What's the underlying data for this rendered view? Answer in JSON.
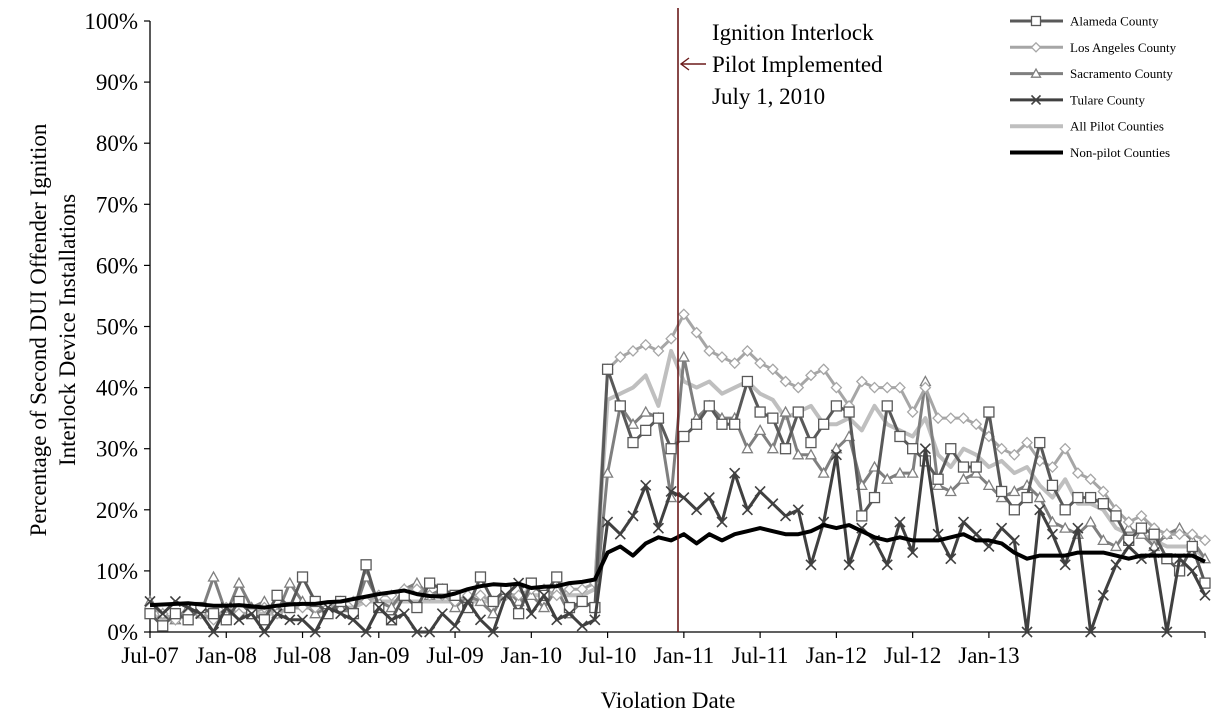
{
  "chart_data": {
    "type": "line",
    "title": "",
    "xlabel": "Violation Date",
    "ylabel_lines": [
      "Percentage of Second DUI Offender Ignition",
      "Interlock Device Installations"
    ],
    "ylim": [
      0,
      100
    ],
    "yticks": [
      0,
      10,
      20,
      30,
      40,
      50,
      60,
      70,
      80,
      90,
      100
    ],
    "ytick_labels": [
      "0%",
      "10%",
      "20%",
      "30%",
      "40%",
      "50%",
      "60%",
      "70%",
      "80%",
      "90%",
      "100%"
    ],
    "x_start": "Jul-07",
    "x_end": "Nov-13",
    "xtick_labels": [
      "Jul-07",
      "Jan-08",
      "Jul-08",
      "Jan-09",
      "Jul-09",
      "Jan-10",
      "Jul-10",
      "Jan-11",
      "Jul-11",
      "Jan-12",
      "Jul-12",
      "Jan-13"
    ],
    "grid": false,
    "legend_position": "top-right",
    "annotation": {
      "lines": [
        "Ignition Interlock",
        "Pilot Implemented",
        "July 1, 2010"
      ],
      "x": "Jul-10"
    },
    "series": [
      {
        "name": "Alameda County",
        "color": "#595959",
        "marker": "square",
        "values": [
          3,
          1,
          3,
          2,
          4,
          3,
          2,
          5,
          3,
          2,
          6,
          4,
          9,
          5,
          3,
          5,
          3,
          11,
          4,
          2,
          6,
          4,
          8,
          7,
          6,
          4,
          9,
          5,
          7,
          3,
          8,
          6,
          9,
          4,
          5,
          4,
          43,
          37,
          31,
          33,
          35,
          30,
          32,
          34,
          37,
          34,
          34,
          41,
          36,
          35,
          30,
          36,
          31,
          34,
          37,
          36,
          19,
          22,
          37,
          32,
          30,
          28,
          25,
          30,
          27,
          27,
          36,
          23,
          20,
          22,
          31,
          24,
          20,
          22,
          22,
          21,
          19,
          15,
          17,
          16,
          12,
          10,
          14,
          8
        ]
      },
      {
        "name": "Los Angeles County",
        "color": "#a6a6a6",
        "marker": "diamond",
        "values": [
          4,
          3,
          2,
          3,
          3,
          2,
          4,
          3,
          3,
          4,
          3,
          4,
          4,
          4,
          4,
          5,
          5,
          5,
          6,
          6,
          7,
          7,
          6,
          6,
          5,
          6,
          6,
          5,
          6,
          6,
          7,
          7,
          6,
          7,
          7,
          8,
          43,
          45,
          46,
          47,
          46,
          48,
          52,
          49,
          46,
          45,
          44,
          46,
          44,
          43,
          41,
          40,
          42,
          43,
          40,
          37,
          41,
          40,
          40,
          40,
          36,
          40,
          35,
          35,
          35,
          34,
          32,
          30,
          29,
          31,
          28,
          27,
          30,
          26,
          25,
          23,
          20,
          18,
          19,
          17,
          16,
          16,
          16,
          15
        ]
      },
      {
        "name": "Sacramento County",
        "color": "#7f7f7f",
        "marker": "triangle",
        "values": [
          5,
          3,
          2,
          4,
          3,
          9,
          3,
          8,
          4,
          5,
          3,
          8,
          5,
          3,
          4,
          4,
          3,
          9,
          5,
          4,
          7,
          8,
          6,
          7,
          4,
          6,
          5,
          3,
          7,
          5,
          6,
          4,
          7,
          3,
          5,
          4,
          26,
          37,
          34,
          36,
          35,
          22,
          45,
          35,
          37,
          35,
          35,
          30,
          33,
          30,
          36,
          29,
          29,
          26,
          30,
          32,
          24,
          27,
          25,
          26,
          26,
          41,
          24,
          23,
          25,
          26,
          24,
          22,
          23,
          24,
          22,
          18,
          17,
          16,
          18,
          15,
          14,
          17,
          16,
          14,
          16,
          17,
          15,
          12
        ]
      },
      {
        "name": "Tulare County",
        "color": "#404040",
        "marker": "x",
        "values": [
          5,
          3,
          5,
          4,
          3,
          0,
          4,
          2,
          3,
          0,
          3,
          2,
          2,
          0,
          4,
          3,
          2,
          0,
          4,
          2,
          3,
          0,
          0,
          3,
          1,
          5,
          2,
          0,
          6,
          8,
          3,
          6,
          2,
          3,
          1,
          2,
          18,
          16,
          19,
          24,
          17,
          23,
          22,
          20,
          22,
          18,
          26,
          20,
          23,
          21,
          19,
          20,
          11,
          18,
          29,
          11,
          17,
          15,
          11,
          18,
          13,
          30,
          16,
          12,
          18,
          16,
          14,
          17,
          15,
          0,
          20,
          16,
          11,
          17,
          0,
          6,
          11,
          14,
          12,
          13,
          0,
          12,
          10,
          6
        ]
      },
      {
        "name": "All Pilot Counties",
        "color": "#bfbfbf",
        "marker": "none",
        "values": [
          3,
          2,
          2,
          3,
          3,
          2,
          3,
          3,
          3,
          3,
          3,
          4,
          4,
          4,
          4,
          4,
          4,
          5,
          5,
          5,
          5,
          5,
          5,
          5,
          5,
          5,
          5,
          5,
          6,
          6,
          6,
          6,
          6,
          6,
          6,
          7,
          38,
          39,
          40,
          42,
          37,
          46,
          41,
          40,
          41,
          39,
          40,
          41,
          39,
          38,
          35,
          36,
          37,
          34,
          34,
          35,
          33,
          37,
          34,
          33,
          32,
          35,
          29,
          27,
          30,
          29,
          27,
          28,
          26,
          27,
          24,
          22,
          25,
          21,
          21,
          20,
          17,
          16,
          16,
          15,
          14,
          14,
          14,
          12
        ]
      },
      {
        "name": "Non-pilot Counties",
        "color": "#000000",
        "marker": "none",
        "values": [
          4.4,
          4.5,
          4.6,
          4.7,
          4.5,
          4.3,
          4.3,
          4.4,
          4.2,
          4.0,
          4.3,
          4.5,
          4.6,
          4.6,
          4.9,
          5.0,
          5.4,
          5.8,
          6.2,
          6.5,
          6.8,
          6.2,
          5.9,
          5.8,
          6.3,
          7.0,
          7.5,
          7.8,
          7.7,
          7.9,
          7.2,
          7.4,
          7.5,
          8.0,
          8.2,
          8.6,
          13.0,
          14.0,
          12.5,
          14.5,
          15.5,
          15.0,
          16.0,
          14.5,
          16.0,
          15.0,
          16.0,
          16.5,
          17.0,
          16.5,
          16.0,
          16.0,
          16.5,
          17.5,
          17.0,
          17.5,
          16.5,
          15.5,
          15.0,
          15.5,
          15.0,
          15.0,
          15.0,
          15.5,
          16.0,
          15.0,
          15.0,
          14.5,
          13.0,
          12.0,
          12.5,
          12.5,
          12.5,
          13.0,
          13.0,
          13.0,
          12.5,
          12.0,
          12.5,
          12.5,
          12.5,
          12.5,
          12.5,
          11.5
        ]
      }
    ]
  }
}
